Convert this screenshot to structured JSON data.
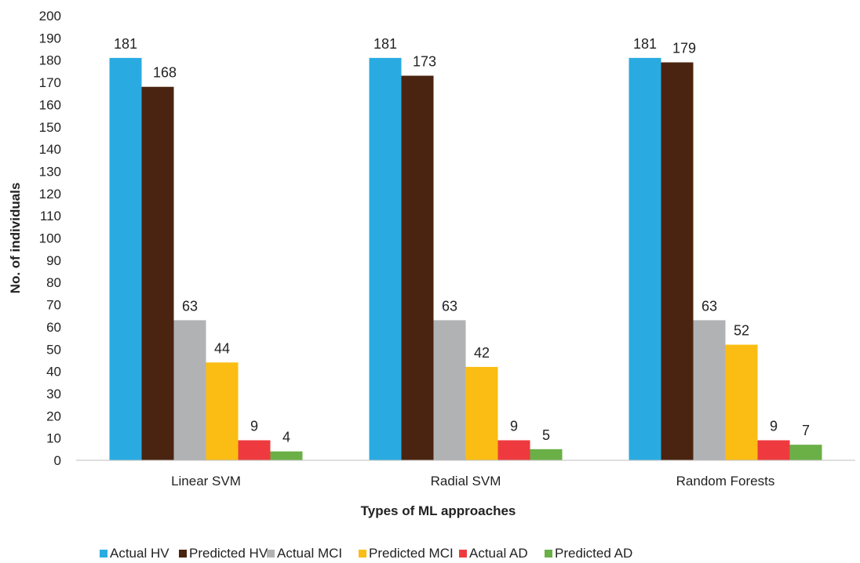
{
  "chart_data": {
    "type": "bar",
    "title": "",
    "xlabel": "Types of ML approaches",
    "ylabel": "No. of individuals",
    "ylim": [
      0,
      200
    ],
    "yticks": [
      0,
      10,
      20,
      30,
      40,
      50,
      60,
      70,
      80,
      90,
      100,
      110,
      120,
      130,
      140,
      150,
      160,
      170,
      180,
      190,
      200
    ],
    "grid": false,
    "legend_position": "bottom",
    "categories": [
      "Linear SVM",
      "Radial SVM",
      "Random Forests"
    ],
    "series": [
      {
        "name": "Actual HV",
        "color": "#29abe2",
        "values": [
          181,
          181,
          181
        ]
      },
      {
        "name": "Predicted HV",
        "color": "#4a2410",
        "values": [
          168,
          173,
          179
        ]
      },
      {
        "name": "Actual MCI",
        "color": "#b1b2b4",
        "values": [
          63,
          63,
          63
        ]
      },
      {
        "name": "Predicted MCI",
        "color": "#fbbd13",
        "values": [
          44,
          42,
          52
        ]
      },
      {
        "name": "Actual AD",
        "color": "#ee3a3e",
        "values": [
          9,
          9,
          9
        ]
      },
      {
        "name": "Predicted AD",
        "color": "#6ab046",
        "values": [
          4,
          5,
          7
        ]
      }
    ]
  }
}
